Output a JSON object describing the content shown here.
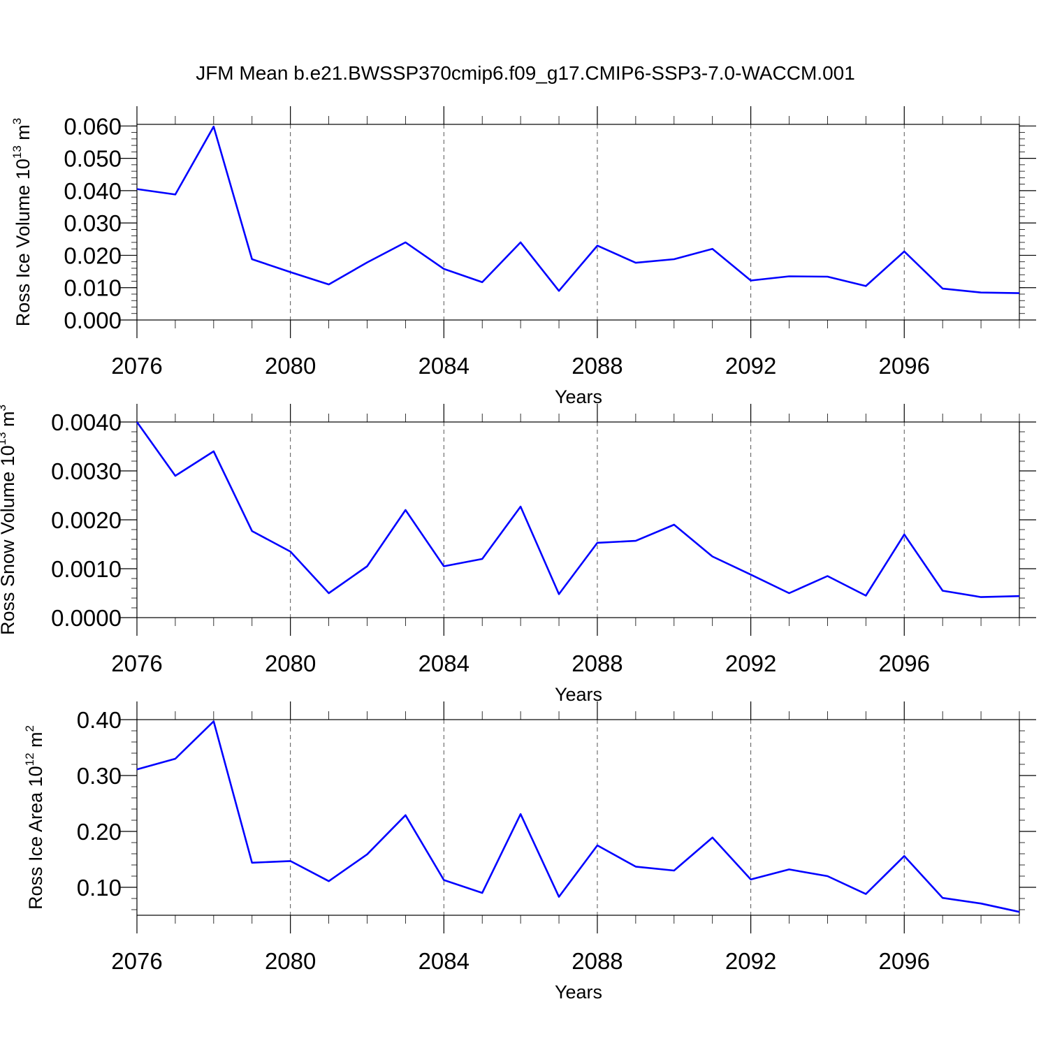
{
  "figure": {
    "title": "JFM Mean b.e21.BWSSP370cmip6.f09_g17.CMIP6-SSP3-7.0-WACCM.001"
  },
  "chart_data": [
    {
      "type": "line",
      "xlabel": "Years",
      "ylabel": {
        "text": "Ross Ice Volume 10",
        "exponent": "13",
        "unit": " m",
        "unit_exponent": "3"
      },
      "x": [
        2076,
        2077,
        2078,
        2079,
        2080,
        2081,
        2082,
        2083,
        2084,
        2085,
        2086,
        2087,
        2088,
        2089,
        2090,
        2091,
        2092,
        2093,
        2094,
        2095,
        2096,
        2097,
        2098,
        2099
      ],
      "series": [
        {
          "values": [
            0.0405,
            0.0388,
            0.0598,
            0.0188,
            0.0148,
            0.011,
            0.0178,
            0.024,
            0.0158,
            0.0117,
            0.024,
            0.009,
            0.023,
            0.0177,
            0.0188,
            0.022,
            0.0122,
            0.0135,
            0.0134,
            0.0105,
            0.0212,
            0.0097,
            0.0085,
            0.0083
          ],
          "color": "#0000ff"
        }
      ],
      "xlim": [
        2076,
        2099
      ],
      "ylim": [
        0.0,
        0.0605
      ],
      "xticks": [
        "2076",
        "2080",
        "2084",
        "2088",
        "2092",
        "2096"
      ],
      "yticks": [
        {
          "value": 0.0,
          "label": "0.000"
        },
        {
          "value": 0.01,
          "label": "0.010"
        },
        {
          "value": 0.02,
          "label": "0.020"
        },
        {
          "value": 0.03,
          "label": "0.030"
        },
        {
          "value": 0.04,
          "label": "0.040"
        },
        {
          "value": 0.05,
          "label": "0.050"
        },
        {
          "value": 0.06,
          "label": "0.060"
        }
      ],
      "grid": "vertical-dashed"
    },
    {
      "type": "line",
      "xlabel": "Years",
      "ylabel": {
        "text": "Ross Snow Volume 10",
        "exponent": "13",
        "unit": " m",
        "unit_exponent": "3"
      },
      "x": [
        2076,
        2077,
        2078,
        2079,
        2080,
        2081,
        2082,
        2083,
        2084,
        2085,
        2086,
        2087,
        2088,
        2089,
        2090,
        2091,
        2092,
        2093,
        2094,
        2095,
        2096,
        2097,
        2098,
        2099
      ],
      "series": [
        {
          "values": [
            0.004,
            0.0029,
            0.0034,
            0.00177,
            0.00135,
            0.0005,
            0.00105,
            0.0022,
            0.00105,
            0.0012,
            0.00227,
            0.00048,
            0.00153,
            0.00157,
            0.0019,
            0.00125,
            0.00088,
            0.0005,
            0.00085,
            0.00045,
            0.0017,
            0.00055,
            0.00042,
            0.00044
          ],
          "color": "#0000ff"
        }
      ],
      "xlim": [
        2076,
        2099
      ],
      "ylim": [
        0.0,
        0.004
      ],
      "xticks": [
        "2076",
        "2080",
        "2084",
        "2088",
        "2092",
        "2096"
      ],
      "yticks": [
        {
          "value": 0.0,
          "label": "0.0000"
        },
        {
          "value": 0.001,
          "label": "0.0010"
        },
        {
          "value": 0.002,
          "label": "0.0020"
        },
        {
          "value": 0.003,
          "label": "0.0030"
        },
        {
          "value": 0.004,
          "label": "0.0040"
        }
      ],
      "grid": "vertical-dashed"
    },
    {
      "type": "line",
      "xlabel": "Years",
      "ylabel": {
        "text": "Ross Ice Area 10",
        "exponent": "12",
        "unit": " m",
        "unit_exponent": "2"
      },
      "x": [
        2076,
        2077,
        2078,
        2079,
        2080,
        2081,
        2082,
        2083,
        2084,
        2085,
        2086,
        2087,
        2088,
        2089,
        2090,
        2091,
        2092,
        2093,
        2094,
        2095,
        2096,
        2097,
        2098,
        2099
      ],
      "series": [
        {
          "values": [
            0.311,
            0.33,
            0.397,
            0.144,
            0.147,
            0.111,
            0.159,
            0.229,
            0.113,
            0.09,
            0.231,
            0.083,
            0.175,
            0.137,
            0.13,
            0.189,
            0.114,
            0.132,
            0.12,
            0.088,
            0.156,
            0.081,
            0.071,
            0.056
          ],
          "color": "#0000ff"
        }
      ],
      "xlim": [
        2076,
        2099
      ],
      "ylim": [
        0.05,
        0.4
      ],
      "xticks": [
        "2076",
        "2080",
        "2084",
        "2088",
        "2092",
        "2096"
      ],
      "yticks": [
        {
          "value": 0.1,
          "label": "0.10"
        },
        {
          "value": 0.2,
          "label": "0.20"
        },
        {
          "value": 0.3,
          "label": "0.30"
        },
        {
          "value": 0.4,
          "label": "0.40"
        }
      ],
      "grid": "vertical-dashed"
    }
  ]
}
